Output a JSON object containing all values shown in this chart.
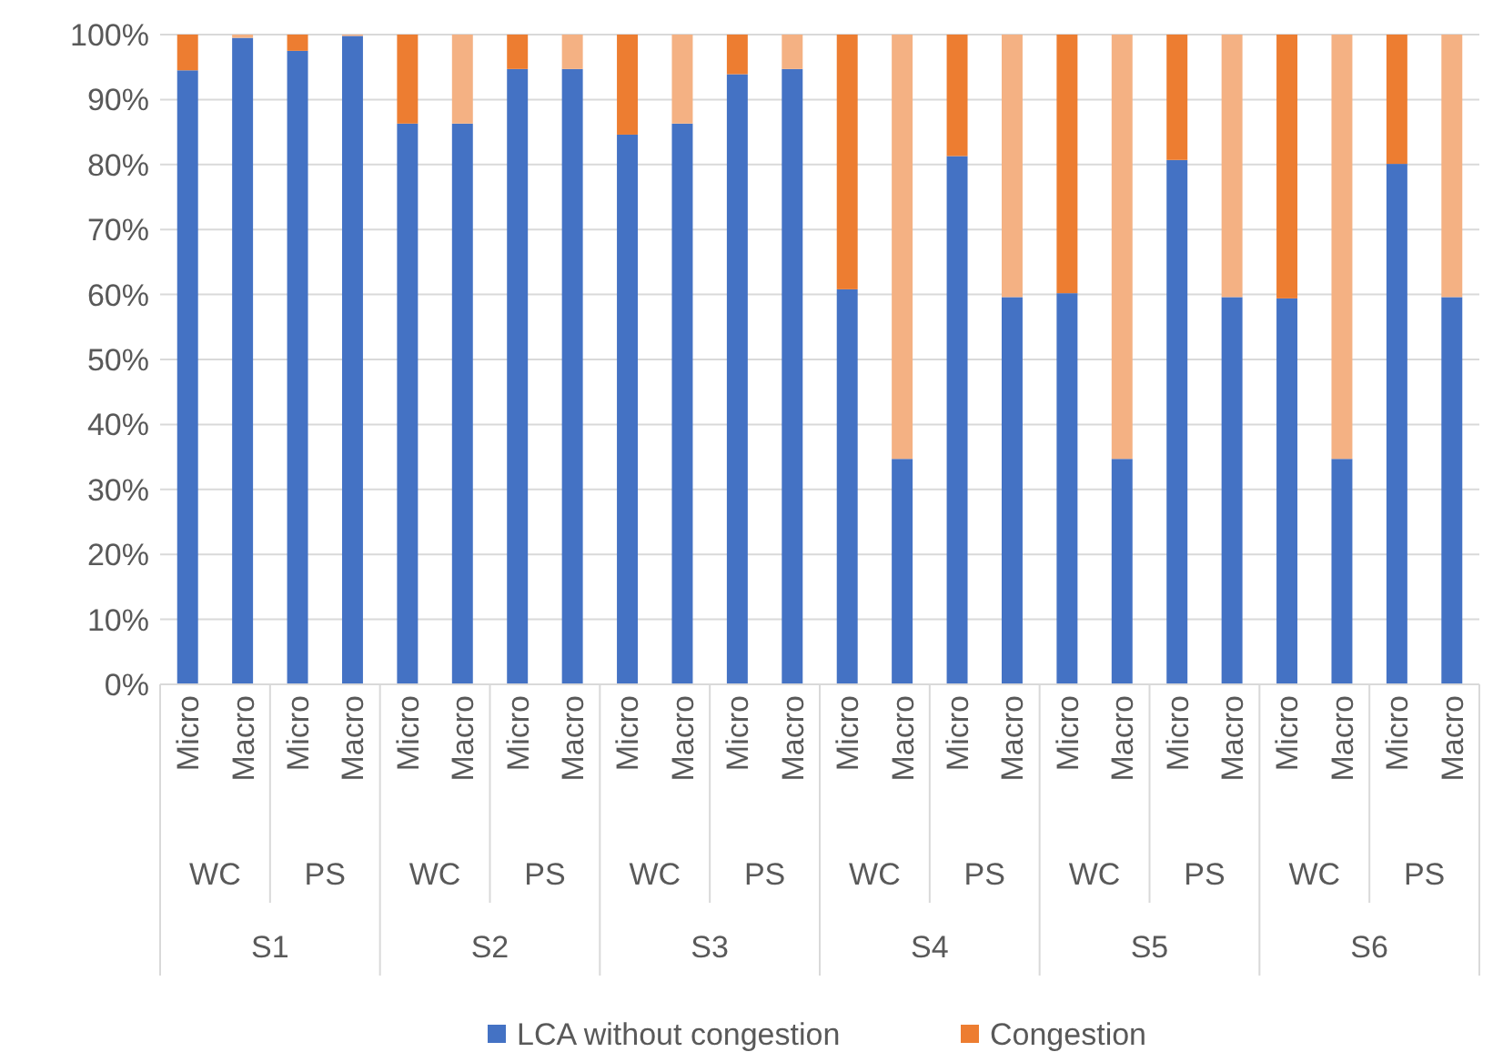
{
  "chart_data": {
    "type": "bar",
    "stacked": true,
    "categories": [
      "Micro",
      "Macro",
      "Micro",
      "Macro",
      "Micro",
      "Macro",
      "Micro",
      "Macro",
      "Micro",
      "Macro",
      "Micro",
      "Macro",
      "Micro",
      "Macro",
      "Micro",
      "Macro",
      "Micro",
      "Macro",
      "Micro",
      "Macro",
      "Micro",
      "Macro",
      "Micro",
      "Macro"
    ],
    "series": [
      {
        "name": "LCA without congestion",
        "color": "#4472c4",
        "values": [
          94.5,
          99.5,
          97.5,
          99.8,
          86.3,
          86.3,
          94.7,
          94.7,
          84.6,
          86.3,
          93.9,
          94.7,
          60.8,
          34.7,
          81.3,
          59.6,
          60.2,
          34.7,
          80.7,
          59.6,
          59.4,
          34.7,
          80.1,
          59.6
        ]
      },
      {
        "name": "Congestion",
        "color": "#ed7d31",
        "colors": [
          "#ed7d31",
          "#f4b183",
          "#ed7d31",
          "#f4b183",
          "#ed7d31",
          "#f4b183",
          "#ed7d31",
          "#f4b183",
          "#ed7d31",
          "#f4b183",
          "#ed7d31",
          "#f4b183",
          "#ed7d31",
          "#f4b183",
          "#ed7d31",
          "#f4b183",
          "#ed7d31",
          "#f4b183",
          "#ed7d31",
          "#f4b183",
          "#ed7d31",
          "#f4b183",
          "#ed7d31",
          "#f4b183"
        ],
        "values": [
          5.5,
          0.5,
          2.5,
          0.2,
          13.7,
          13.7,
          5.3,
          5.3,
          15.4,
          13.7,
          6.1,
          5.3,
          39.2,
          65.3,
          18.7,
          40.4,
          39.8,
          65.3,
          19.3,
          40.4,
          40.6,
          65.3,
          19.9,
          40.4
        ]
      }
    ],
    "annotations": [
      "WC",
      "PS",
      "S1",
      "WC",
      "PS",
      "S2",
      "WC",
      "PS",
      "S3",
      "WC",
      "PS",
      "S4",
      "WC",
      "PS",
      "S5",
      "WC",
      "PS",
      "S6"
    ],
    "ylim": [
      0,
      100
    ],
    "yticks": [
      {
        "value": 0,
        "label": "0%"
      },
      {
        "value": 10,
        "label": "10%"
      },
      {
        "value": 20,
        "label": "20%"
      },
      {
        "value": 30,
        "label": "30%"
      },
      {
        "value": 40,
        "label": "40%"
      },
      {
        "value": 50,
        "label": "50%"
      },
      {
        "value": 60,
        "label": "60%"
      },
      {
        "value": 70,
        "label": "70%"
      },
      {
        "value": 80,
        "label": "80%"
      },
      {
        "value": 90,
        "label": "90%"
      },
      {
        "value": 100,
        "label": "100%"
      }
    ],
    "grid": "y",
    "legend": "bottom"
  }
}
